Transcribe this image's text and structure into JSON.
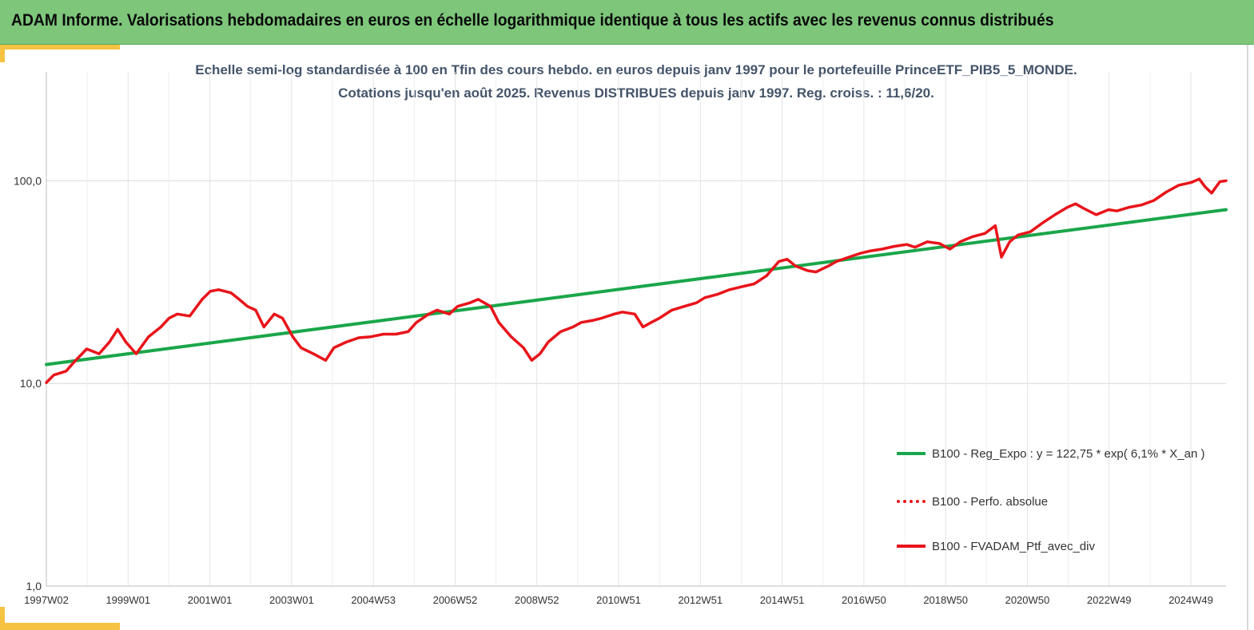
{
  "banner": {
    "title": "ADAM Informe. Valorisations hebdomadaires en euros en échelle logarithmique identique à tous les actifs avec les revenus connus distribués"
  },
  "colors": {
    "banner_bg": "#7dc67a",
    "accent_yellow": "#f5c242",
    "regression_green": "#1aa64a",
    "series_red": "#e8141a"
  },
  "chart_data": {
    "type": "line",
    "title_line1": "Echelle semi-log standardisée à 100 en Tfin des cours hebdo. en euros depuis janv 1997 pour le portefeuille PrinceETF_PIB5_5_MONDE.",
    "title_line2": "Cotations jusqu'en août 2025. Revenus DISTRIBUES depuis janv 1997. Reg. croiss. : 11,6/20.",
    "y_scale": "log",
    "ylim": [
      1,
      200
    ],
    "y_ticks": [
      {
        "value": 1,
        "label": "1,0"
      },
      {
        "value": 10,
        "label": "10,0"
      },
      {
        "value": 100,
        "label": "100,0"
      }
    ],
    "xlim": [
      1997.02,
      2025.65
    ],
    "x_ticks": [
      "1997W02",
      "1999W01",
      "2001W01",
      "2003W01",
      "2004W53",
      "2006W52",
      "2008W52",
      "2010W51",
      "2012W51",
      "2014W51",
      "2016W50",
      "2018W50",
      "2020W50",
      "2022W49",
      "2024W49"
    ],
    "grid": {
      "vertical": true,
      "horizontal": true
    },
    "legend_position": "bottom-right",
    "series": [
      {
        "name": "B100 - Reg_Expo : y = 122,75 * exp( 6,1% *  X_an )",
        "style": "solid",
        "color": "#1aa64a",
        "x": [
          1997.02,
          2025.65
        ],
        "y": [
          12.4,
          72.0
        ]
      },
      {
        "name": "B100 - Perfo. absolue",
        "style": "dotted",
        "color": "#e8141a",
        "x": [],
        "y": []
      },
      {
        "name": "B100 - FVADAM_Ptf_avec_div",
        "style": "solid",
        "color": "#e8141a",
        "x": [
          1997.02,
          1997.2,
          1997.5,
          1997.7,
          1998.0,
          1998.3,
          1998.55,
          1998.75,
          1998.95,
          1999.2,
          1999.5,
          1999.8,
          2000.0,
          2000.2,
          2000.5,
          2000.8,
          2001.0,
          2001.2,
          2001.5,
          2001.7,
          2001.9,
          2002.1,
          2002.3,
          2002.55,
          2002.75,
          2003.0,
          2003.2,
          2003.5,
          2003.8,
          2004.0,
          2004.3,
          2004.6,
          2004.9,
          2005.2,
          2005.5,
          2005.8,
          2006.0,
          2006.3,
          2006.5,
          2006.8,
          2007.0,
          2007.3,
          2007.5,
          2007.8,
          2008.0,
          2008.3,
          2008.6,
          2008.8,
          2009.0,
          2009.2,
          2009.5,
          2009.8,
          2010.0,
          2010.3,
          2010.5,
          2010.8,
          2011.0,
          2011.3,
          2011.5,
          2011.7,
          2011.9,
          2012.2,
          2012.5,
          2012.8,
          2013.0,
          2013.3,
          2013.6,
          2013.9,
          2014.2,
          2014.5,
          2014.8,
          2015.0,
          2015.2,
          2015.5,
          2015.7,
          2016.0,
          2016.2,
          2016.5,
          2016.8,
          2017.0,
          2017.3,
          2017.6,
          2017.9,
          2018.1,
          2018.4,
          2018.7,
          2018.95,
          2019.2,
          2019.5,
          2019.8,
          2020.05,
          2020.2,
          2020.4,
          2020.6,
          2020.9,
          2021.2,
          2021.5,
          2021.8,
          2022.0,
          2022.2,
          2022.5,
          2022.8,
          2023.0,
          2023.3,
          2023.6,
          2023.9,
          2024.2,
          2024.5,
          2024.8,
          2025.0,
          2025.15,
          2025.3,
          2025.5,
          2025.65
        ],
        "y": [
          10.1,
          11.0,
          11.5,
          12.8,
          14.8,
          14.0,
          16.0,
          18.5,
          16.0,
          14.0,
          17.0,
          19.0,
          21.0,
          22.0,
          21.5,
          26.0,
          28.5,
          29.0,
          28.0,
          26.0,
          24.0,
          23.0,
          19.0,
          22.0,
          21.0,
          17.0,
          15.0,
          14.0,
          13.0,
          15.0,
          16.0,
          16.8,
          17.0,
          17.5,
          17.5,
          18.0,
          20.0,
          22.0,
          23.0,
          22.0,
          24.0,
          25.0,
          26.0,
          24.0,
          20.0,
          17.0,
          15.0,
          13.0,
          14.0,
          16.0,
          18.0,
          19.0,
          20.0,
          20.5,
          21.0,
          22.0,
          22.5,
          22.0,
          19.0,
          20.0,
          21.0,
          23.0,
          24.0,
          25.0,
          26.5,
          27.5,
          29.0,
          30.0,
          31.0,
          34.0,
          40.0,
          41.0,
          38.0,
          36.0,
          35.5,
          38.0,
          40.0,
          42.0,
          44.0,
          45.0,
          46.0,
          47.5,
          48.5,
          47.0,
          50.0,
          49.0,
          46.0,
          50.0,
          53.0,
          55.0,
          60.0,
          42.0,
          50.0,
          54.0,
          56.0,
          62.0,
          68.0,
          74.0,
          77.0,
          73.0,
          68.0,
          72.0,
          71.0,
          74.0,
          76.0,
          80.0,
          88.0,
          95.0,
          98.0,
          102.0,
          93.0,
          87.0,
          99.0,
          100.0
        ]
      }
    ]
  }
}
